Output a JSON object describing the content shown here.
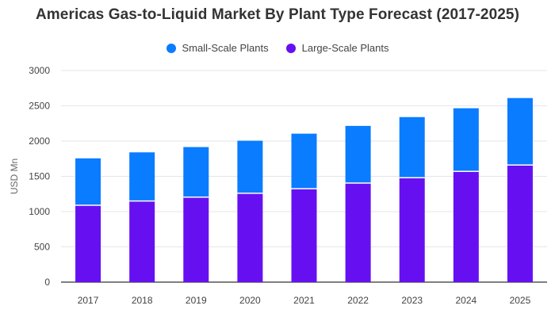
{
  "chart_data": {
    "type": "bar",
    "stacked": true,
    "title": "Americas Gas-to-Liquid Market By Plant Type Forecast (2017-2025)",
    "xlabel": "",
    "ylabel": "USD Mn",
    "categories": [
      "2017",
      "2018",
      "2019",
      "2020",
      "2021",
      "2022",
      "2023",
      "2024",
      "2025"
    ],
    "ylim": [
      0,
      3000
    ],
    "yticks": [
      0,
      500,
      1000,
      1500,
      2000,
      2500,
      3000
    ],
    "grid": true,
    "legend_position": "top-center",
    "series": [
      {
        "name": "Small-Scale Plants",
        "color": "#0a7cff",
        "values": [
          665,
          690,
          710,
          745,
          780,
          810,
          860,
          895,
          950
        ]
      },
      {
        "name": "Large-Scale Plants",
        "color": "#6610f2",
        "values": [
          1090,
          1150,
          1205,
          1260,
          1325,
          1405,
          1480,
          1570,
          1660
        ]
      }
    ]
  }
}
